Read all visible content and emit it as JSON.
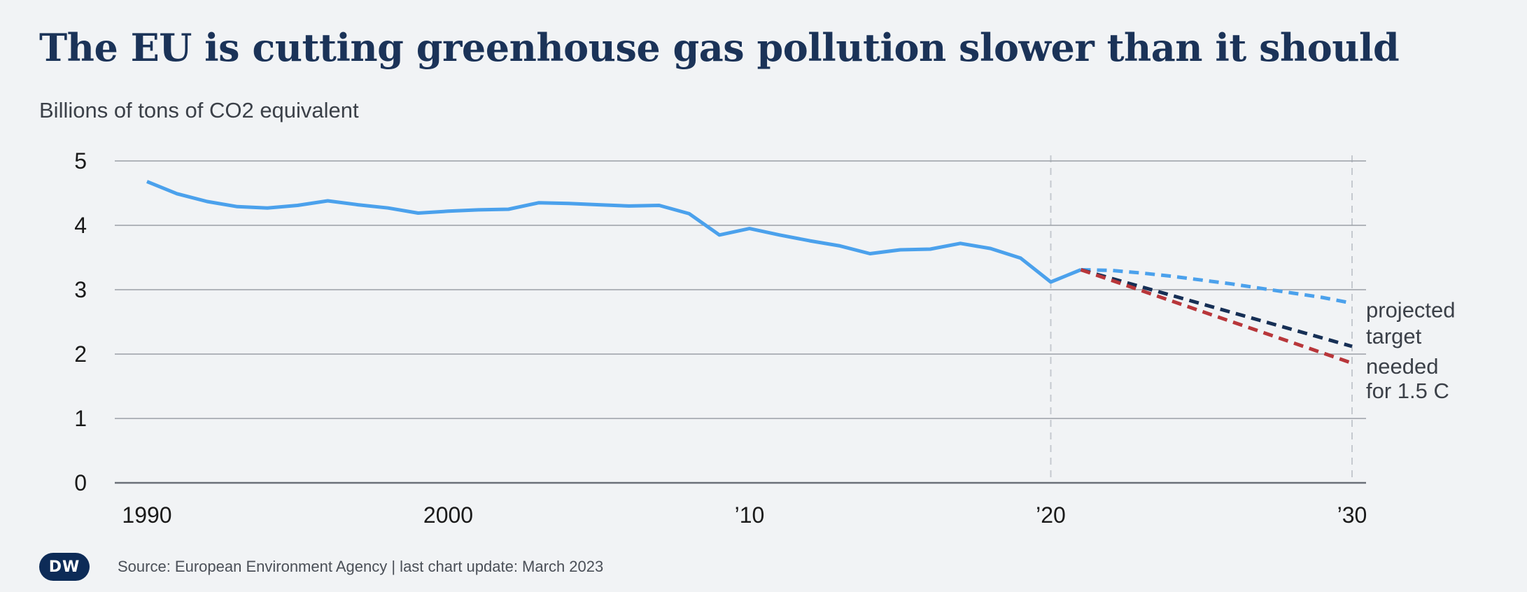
{
  "title": "The EU is cutting greenhouse gas pollution slower than it should",
  "subtitle": "Billions of tons of CO2 equivalent",
  "source": "Source: European Environment Agency | last chart update: March 2023",
  "logo_text": "DW",
  "colors": {
    "historical": "#4ba1ec",
    "projected": "#4ba1ec",
    "target": "#162f55",
    "needed": "#b8363a",
    "gridline": "#9a9fa6",
    "axis": "#6b7078",
    "label": "#1a1a1a",
    "annotation": "#3b4048",
    "refline": "#c5c9cf"
  },
  "chart_data": {
    "type": "line",
    "title": "The EU is cutting greenhouse gas pollution slower than it should",
    "ylabel": "Billions of tons of CO2 equivalent",
    "xlim": [
      1990,
      2030
    ],
    "ylim": [
      0,
      5
    ],
    "y_ticks": [
      0,
      1,
      2,
      3,
      4,
      5
    ],
    "x_ticks": [
      {
        "value": 1990,
        "label": "1990"
      },
      {
        "value": 2000,
        "label": "2000"
      },
      {
        "value": 2010,
        "label": "’10"
      },
      {
        "value": 2020,
        "label": "’20"
      },
      {
        "value": 2030,
        "label": "’30"
      }
    ],
    "reference_lines_x": [
      2020,
      2030
    ],
    "grid": true,
    "series": [
      {
        "key": "historical",
        "style": "solid",
        "x": [
          1990,
          1991,
          1992,
          1993,
          1994,
          1995,
          1996,
          1997,
          1998,
          1999,
          2000,
          2001,
          2002,
          2003,
          2004,
          2005,
          2006,
          2007,
          2008,
          2009,
          2010,
          2011,
          2012,
          2013,
          2014,
          2015,
          2016,
          2017,
          2018,
          2019,
          2020,
          2021
        ],
        "y": [
          4.68,
          4.49,
          4.37,
          4.29,
          4.27,
          4.31,
          4.38,
          4.32,
          4.27,
          4.19,
          4.22,
          4.24,
          4.25,
          4.35,
          4.34,
          4.32,
          4.3,
          4.31,
          4.18,
          3.85,
          3.95,
          3.85,
          3.76,
          3.68,
          3.56,
          3.62,
          3.63,
          3.72,
          3.64,
          3.49,
          3.12,
          3.31
        ]
      },
      {
        "key": "projected",
        "name": "projected",
        "style": "dashed",
        "x": [
          2021,
          2022,
          2023,
          2024,
          2025,
          2026,
          2027,
          2028,
          2029,
          2030
        ],
        "y": [
          3.31,
          3.3,
          3.26,
          3.21,
          3.15,
          3.09,
          3.02,
          2.95,
          2.88,
          2.79
        ]
      },
      {
        "key": "target",
        "name": "target",
        "style": "dashed",
        "x": [
          2021,
          2030
        ],
        "y": [
          3.31,
          2.12
        ]
      },
      {
        "key": "needed",
        "name": "needed for 1.5 C",
        "style": "dashed",
        "x": [
          2021,
          2030
        ],
        "y": [
          3.31,
          1.86
        ]
      }
    ],
    "annotations": [
      {
        "series": "projected",
        "lines": [
          "projected"
        ]
      },
      {
        "series": "target",
        "lines": [
          "target"
        ]
      },
      {
        "series": "needed",
        "lines": [
          "needed",
          "for 1.5 C"
        ]
      }
    ]
  }
}
